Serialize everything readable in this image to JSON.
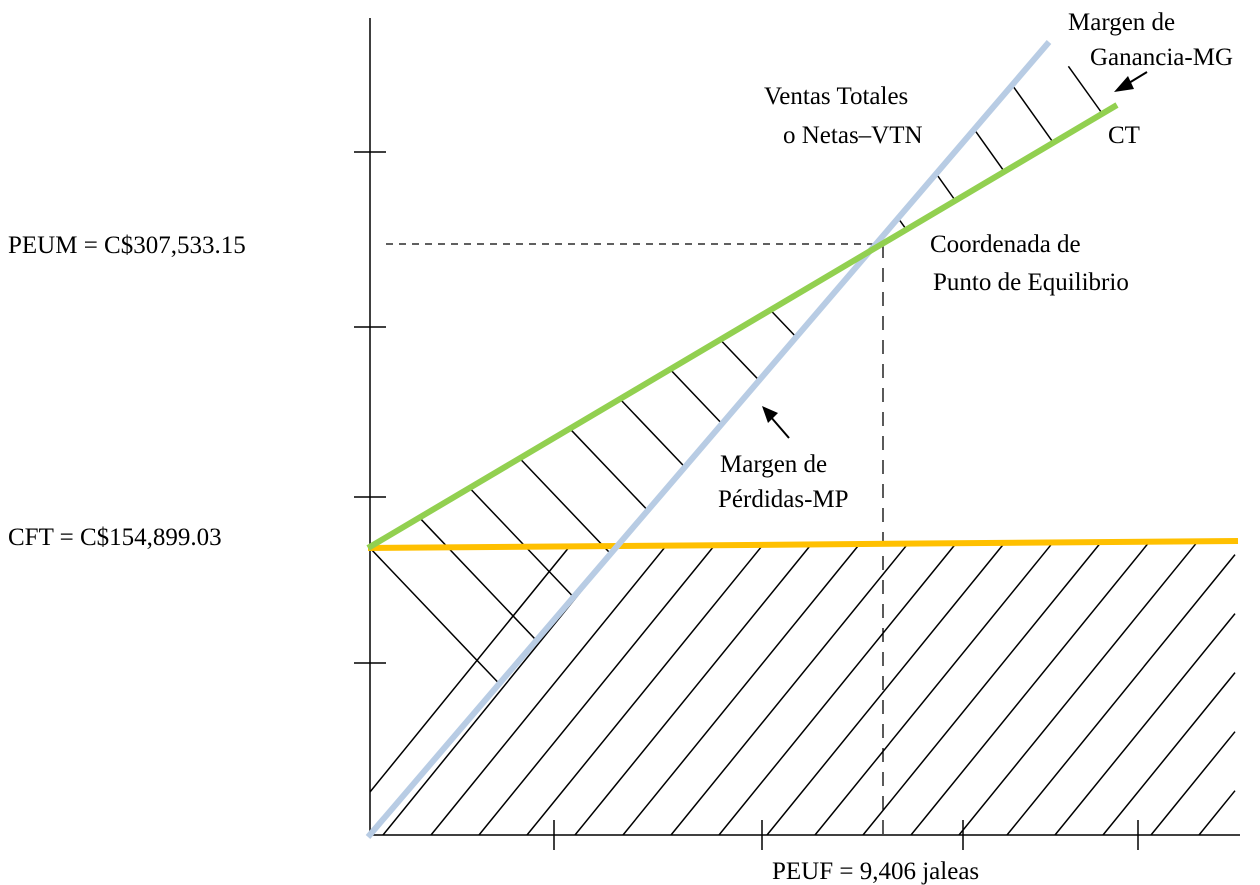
{
  "chart_data": {
    "type": "line",
    "title": "",
    "xlabel": "",
    "ylabel": "",
    "lines": [
      {
        "key": "vtn",
        "label_lines": [
          "Ventas Totales",
          "o Netas–VTN"
        ],
        "color": "#B8CCE4"
      },
      {
        "key": "ct",
        "label_lines": [
          "CT"
        ],
        "color": "#92D050"
      },
      {
        "key": "cft",
        "label_lines": [
          "CFT = C$154,899.03"
        ],
        "color": "#FFC000"
      }
    ],
    "y_markers": [
      {
        "key": "peum",
        "label": "PEUM = C$307,533.15",
        "value": 307533.15
      },
      {
        "key": "cft",
        "label": "CFT = C$154,899.03",
        "value": 154899.03
      }
    ],
    "x_markers": [
      {
        "key": "peuf",
        "label": "PEUF = 9,406 jaleas",
        "value": 9406,
        "unit": "jaleas"
      }
    ],
    "annotations": {
      "margen_ganancia": [
        "Margen de",
        "Ganancia-MG"
      ],
      "margen_perdidas": [
        "Margen de",
        "Pérdidas-MP"
      ],
      "equilibrio": [
        "Coordenada de",
        "Punto de Equilibrio"
      ]
    },
    "hatched_regions": [
      "Margen de Ganancia-MG",
      "Margen de Pérdidas-MP",
      "CFT"
    ],
    "grid": false,
    "legend": "none"
  }
}
